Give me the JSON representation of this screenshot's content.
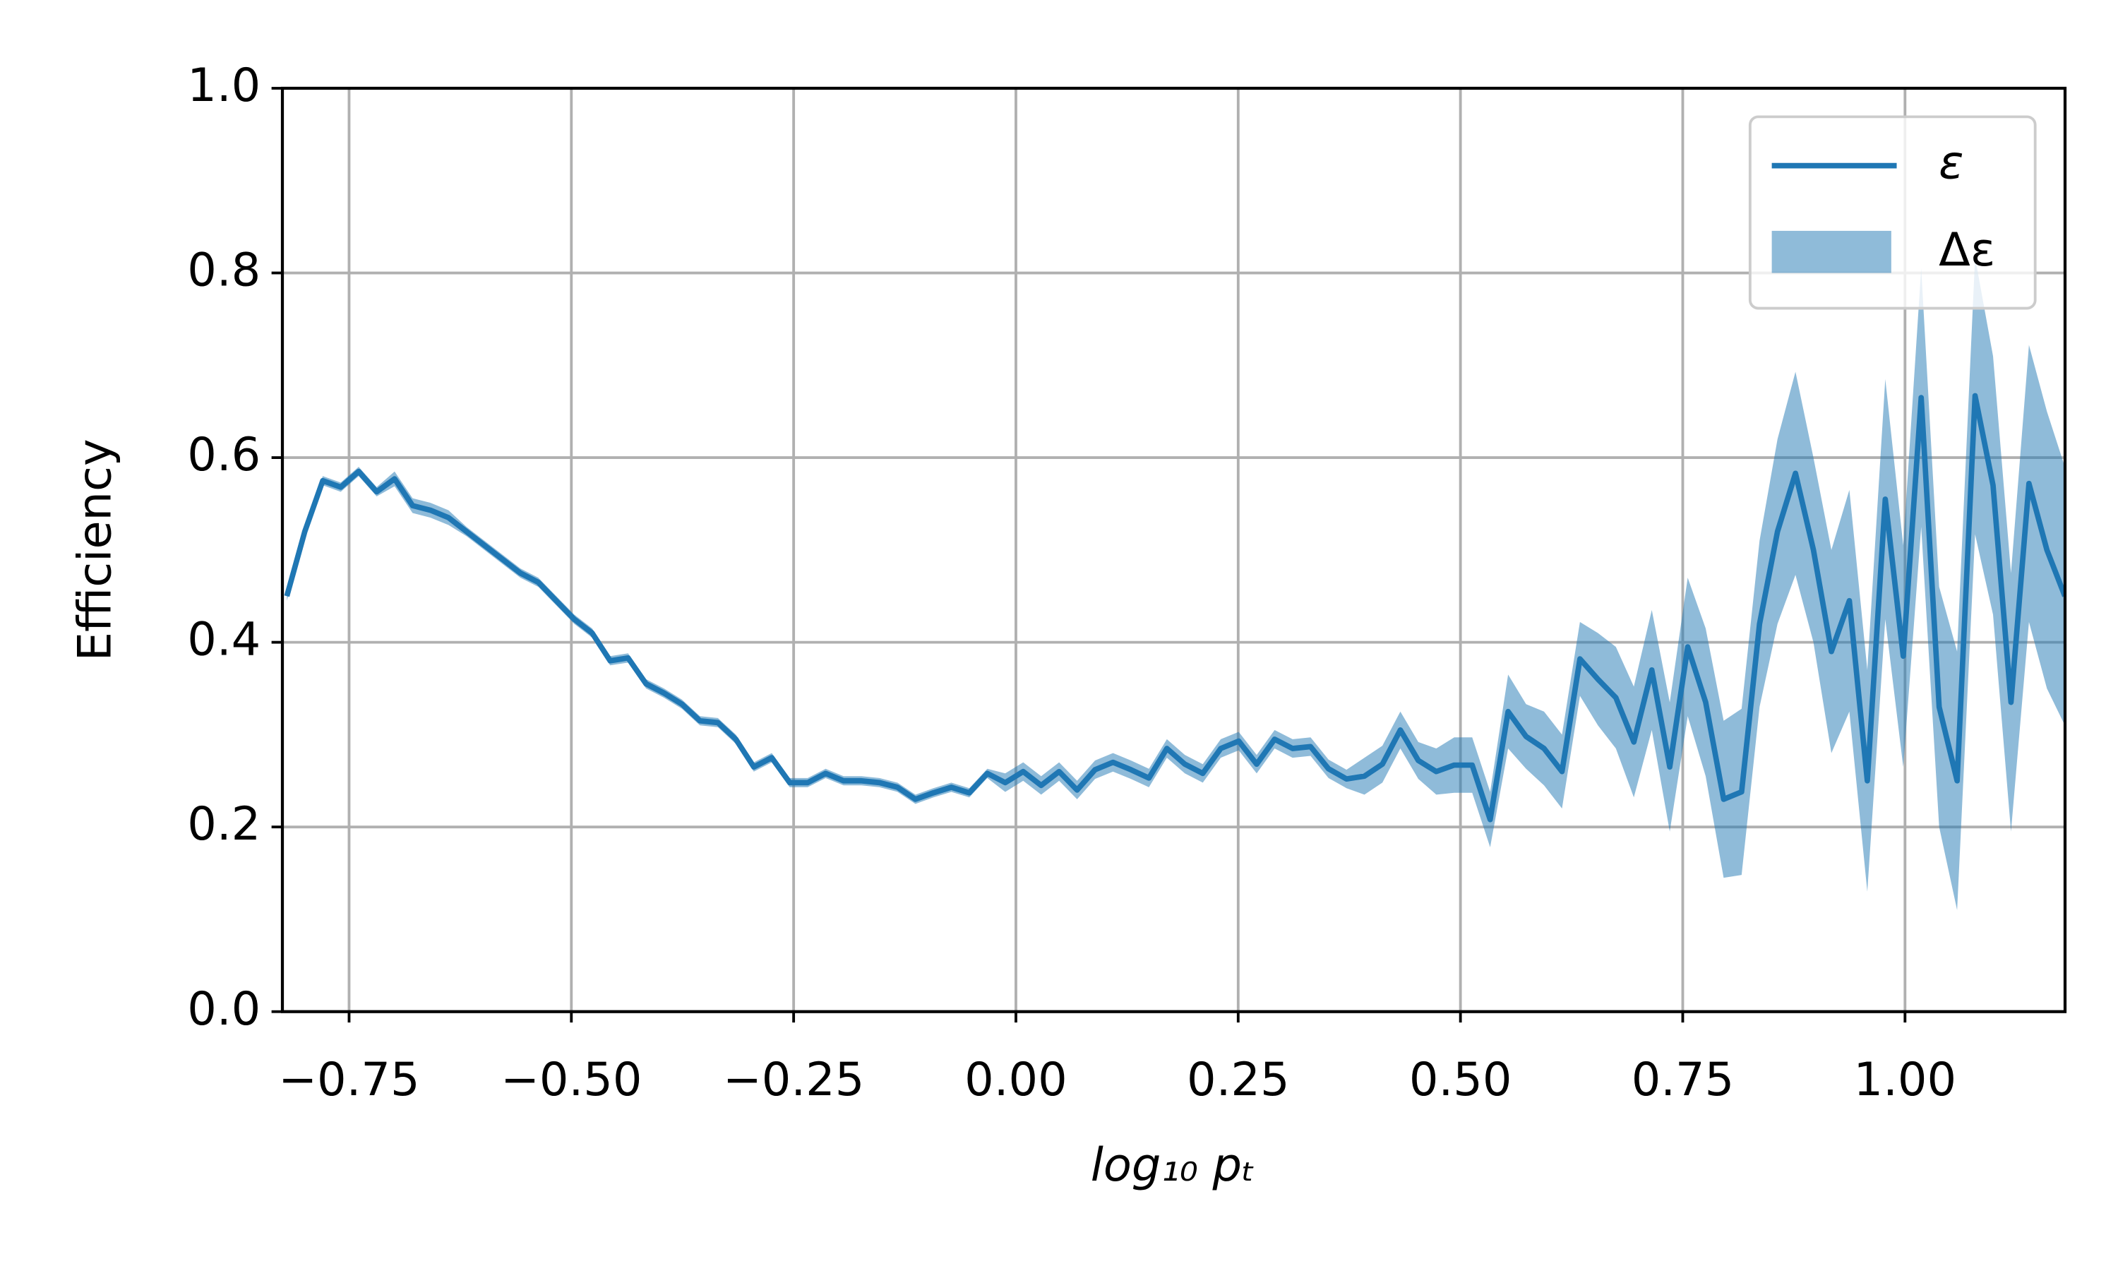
{
  "chart_data": {
    "type": "line",
    "xlabel": "log₁₀ pₜ",
    "ylabel": "Efficiency",
    "xlim": [
      -0.825,
      1.18
    ],
    "ylim": [
      0,
      1
    ],
    "xticks": [
      {
        "value": -0.75,
        "label": "−0.75"
      },
      {
        "value": -0.5,
        "label": "−0.50"
      },
      {
        "value": -0.25,
        "label": "−0.25"
      },
      {
        "value": 0,
        "label": "0.00"
      },
      {
        "value": 0.25,
        "label": "0.25"
      },
      {
        "value": 0.5,
        "label": "0.50"
      },
      {
        "value": 0.75,
        "label": "0.75"
      },
      {
        "value": 1,
        "label": "1.00"
      }
    ],
    "yticks": [
      {
        "value": 0,
        "label": "0.0"
      },
      {
        "value": 0.2,
        "label": "0.2"
      },
      {
        "value": 0.4,
        "label": "0.4"
      },
      {
        "value": 0.6,
        "label": "0.6"
      },
      {
        "value": 0.8,
        "label": "0.8"
      },
      {
        "value": 1,
        "label": "1.0"
      }
    ],
    "grid": true,
    "legend": "upper right",
    "x": [
      -0.82,
      -0.7998,
      -0.7796,
      -0.7594,
      -0.7392,
      -0.719,
      -0.6988,
      -0.6786,
      -0.6584,
      -0.6382,
      -0.618,
      -0.5978,
      -0.5776,
      -0.5574,
      -0.5372,
      -0.517,
      -0.4968,
      -0.4766,
      -0.4564,
      -0.4362,
      -0.416,
      -0.3958,
      -0.3756,
      -0.3554,
      -0.3352,
      -0.315,
      -0.2948,
      -0.2746,
      -0.2544,
      -0.2342,
      -0.214,
      -0.1938,
      -0.1736,
      -0.1534,
      -0.1332,
      -0.113,
      -0.0928,
      -0.0726,
      -0.0524,
      -0.0322,
      -0.012,
      0.0082,
      0.0284,
      0.0486,
      0.0688,
      0.089,
      0.1092,
      0.1294,
      0.1496,
      0.1698,
      0.19,
      0.2102,
      0.2304,
      0.2506,
      0.2708,
      0.291,
      0.3112,
      0.3314,
      0.3516,
      0.3718,
      0.392,
      0.4122,
      0.4324,
      0.4526,
      0.4728,
      0.493,
      0.5132,
      0.5334,
      0.5536,
      0.5738,
      0.594,
      0.6142,
      0.6344,
      0.6546,
      0.6748,
      0.695,
      0.7152,
      0.7354,
      0.7556,
      0.7758,
      0.796,
      0.8162,
      0.8364,
      0.8566,
      0.8768,
      0.897,
      0.9172,
      0.9374,
      0.9576,
      0.9778,
      0.998,
      1.0182,
      1.0384,
      1.0586,
      1.0788,
      1.099,
      1.1192,
      1.1394,
      1.1596,
      1.1798
    ],
    "series": [
      {
        "name": "ε",
        "color": "#1f77b4",
        "values": [
          0.45,
          0.52,
          0.575,
          0.568,
          0.585,
          0.563,
          0.577,
          0.548,
          0.543,
          0.535,
          0.52,
          0.505,
          0.49,
          0.475,
          0.465,
          0.445,
          0.425,
          0.41,
          0.38,
          0.383,
          0.355,
          0.345,
          0.333,
          0.315,
          0.313,
          0.295,
          0.265,
          0.275,
          0.248,
          0.248,
          0.258,
          0.25,
          0.25,
          0.248,
          0.243,
          0.23,
          0.237,
          0.243,
          0.237,
          0.258,
          0.248,
          0.26,
          0.245,
          0.26,
          0.24,
          0.262,
          0.27,
          0.262,
          0.253,
          0.285,
          0.268,
          0.258,
          0.285,
          0.293,
          0.268,
          0.295,
          0.285,
          0.287,
          0.263,
          0.252,
          0.255,
          0.268,
          0.305,
          0.272,
          0.26,
          0.267,
          0.267,
          0.208,
          0.325,
          0.298,
          0.285,
          0.26,
          0.382,
          0.36,
          0.34,
          0.292,
          0.37,
          0.265,
          0.395,
          0.335,
          0.23,
          0.238,
          0.42,
          0.52,
          0.583,
          0.5,
          0.39,
          0.445,
          0.25,
          0.555,
          0.385,
          0.665,
          0.33,
          0.25,
          0.667,
          0.57,
          0.335,
          0.572,
          0.5,
          0.45
        ]
      }
    ],
    "band": {
      "name": "Δε",
      "color": "#1f77b4",
      "errors": [
        0.005,
        0.005,
        0.005,
        0.005,
        0.005,
        0.005,
        0.008,
        0.008,
        0.008,
        0.008,
        0.005,
        0.005,
        0.005,
        0.005,
        0.005,
        0.005,
        0.005,
        0.005,
        0.005,
        0.005,
        0.005,
        0.005,
        0.005,
        0.005,
        0.005,
        0.005,
        0.005,
        0.005,
        0.005,
        0.005,
        0.005,
        0.005,
        0.005,
        0.005,
        0.005,
        0.005,
        0.005,
        0.005,
        0.005,
        0.005,
        0.01,
        0.01,
        0.01,
        0.01,
        0.01,
        0.01,
        0.01,
        0.01,
        0.01,
        0.01,
        0.01,
        0.01,
        0.01,
        0.01,
        0.01,
        0.01,
        0.01,
        0.01,
        0.01,
        0.01,
        0.02,
        0.02,
        0.02,
        0.02,
        0.025,
        0.03,
        0.03,
        0.03,
        0.04,
        0.035,
        0.04,
        0.04,
        0.04,
        0.05,
        0.055,
        0.06,
        0.065,
        0.07,
        0.075,
        0.08,
        0.085,
        0.09,
        0.09,
        0.1,
        0.11,
        0.1,
        0.11,
        0.12,
        0.12,
        0.13,
        0.12,
        0.14,
        0.13,
        0.14,
        0.15,
        0.14,
        0.14,
        0.15,
        0.15,
        0.14
      ]
    }
  }
}
